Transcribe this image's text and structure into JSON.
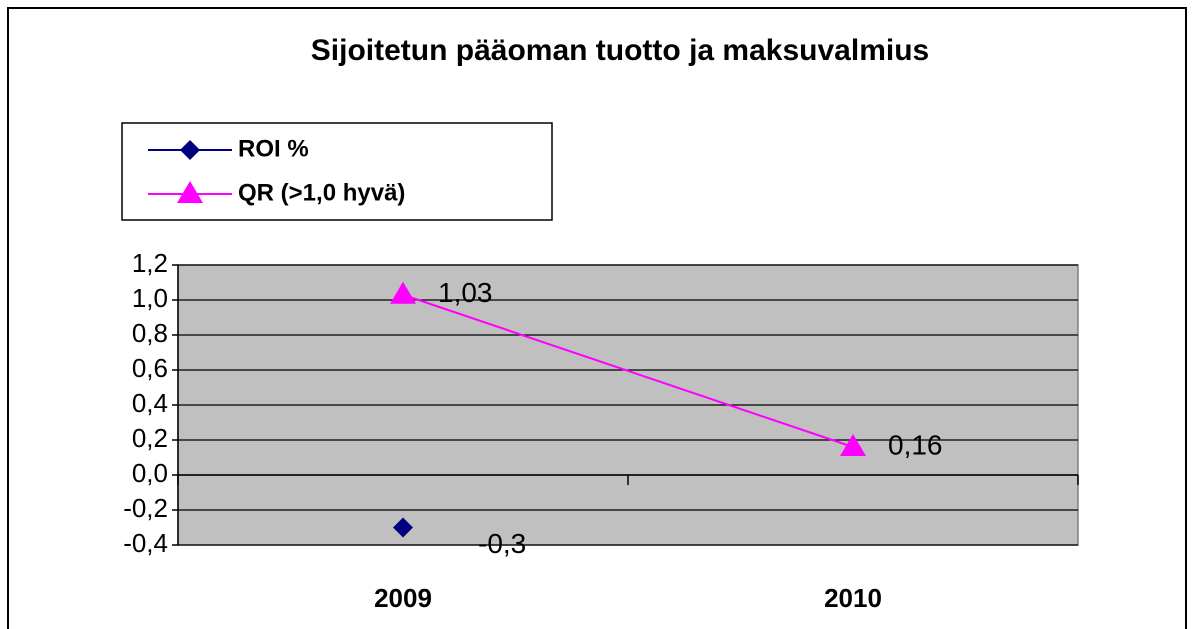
{
  "chart_data": {
    "type": "line",
    "title": "Sijoitetun pääoman tuotto ja maksuvalmius",
    "categories": [
      "2009",
      "2010"
    ],
    "series": [
      {
        "name": "ROI %",
        "color": "#000080",
        "marker": "diamond",
        "values": [
          -0.3,
          null
        ],
        "value_labels": [
          "-0,3",
          null
        ]
      },
      {
        "name": "QR (>1,0 hyvä)",
        "color": "#ff00ff",
        "marker": "triangle",
        "values": [
          1.03,
          0.16
        ],
        "value_labels": [
          "1,03",
          "0,16"
        ]
      }
    ],
    "ylim": [
      -0.4,
      1.2
    ],
    "yticks": [
      {
        "value": -0.4,
        "label": "-0,4"
      },
      {
        "value": -0.2,
        "label": "-0,2"
      },
      {
        "value": 0,
        "label": "0,0"
      },
      {
        "value": 0.2,
        "label": "0,2"
      },
      {
        "value": 0.4,
        "label": "0,4"
      },
      {
        "value": 0.6,
        "label": "0,6"
      },
      {
        "value": 0.8,
        "label": "0,8"
      },
      {
        "value": 1.0,
        "label": "1,0"
      },
      {
        "value": 1.2,
        "label": "1,2"
      }
    ],
    "grid": true,
    "legend": "top-left"
  }
}
